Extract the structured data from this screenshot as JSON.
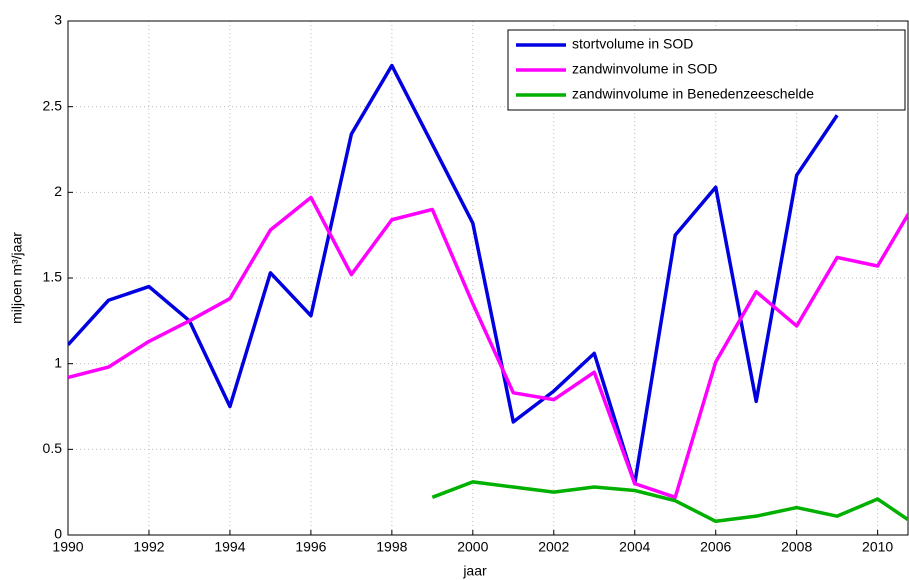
{
  "chart_data": {
    "type": "line",
    "x_label": "jaar",
    "y_label": "miljoen m³/jaar",
    "x": [
      1990,
      1991,
      1992,
      1993,
      1994,
      1995,
      1996,
      1997,
      1998,
      1999,
      2000,
      2001,
      2002,
      2003,
      2004,
      2005,
      2006,
      2007,
      2008,
      2009,
      2010,
      2011
    ],
    "series": [
      {
        "name": "stortvolume in SOD",
        "color": "#0000e0",
        "values": [
          1.11,
          1.37,
          1.45,
          1.25,
          0.75,
          1.53,
          1.28,
          2.34,
          2.74,
          2.28,
          1.82,
          0.66,
          0.84,
          1.06,
          0.3,
          1.75,
          2.03,
          0.78,
          2.1,
          2.45,
          null,
          null
        ]
      },
      {
        "name": "zandwinvolume in SOD",
        "color": "#ff00ff",
        "values": [
          0.92,
          0.98,
          1.13,
          1.25,
          1.38,
          1.78,
          1.97,
          1.52,
          1.84,
          1.9,
          1.35,
          0.83,
          0.79,
          0.95,
          0.3,
          0.22,
          1.01,
          1.42,
          1.22,
          1.62,
          1.57,
          1.97
        ]
      },
      {
        "name": "zandwinvolume in Benedenzeeschelde",
        "color": "#00b000",
        "values": [
          null,
          null,
          null,
          null,
          null,
          null,
          null,
          null,
          null,
          0.22,
          0.31,
          0.28,
          0.25,
          0.28,
          0.26,
          0.2,
          0.08,
          0.11,
          0.16,
          0.11,
          0.21,
          0.05
        ]
      }
    ],
    "xlim": [
      1990,
      2010.75
    ],
    "ylim": [
      0,
      3
    ],
    "xticks": [
      1990,
      1992,
      1994,
      1996,
      1998,
      2000,
      2002,
      2004,
      2006,
      2008,
      2010
    ],
    "yticks": [
      0,
      0.5,
      1,
      1.5,
      2,
      2.5,
      3
    ],
    "grid": true,
    "legend": "upper right"
  }
}
